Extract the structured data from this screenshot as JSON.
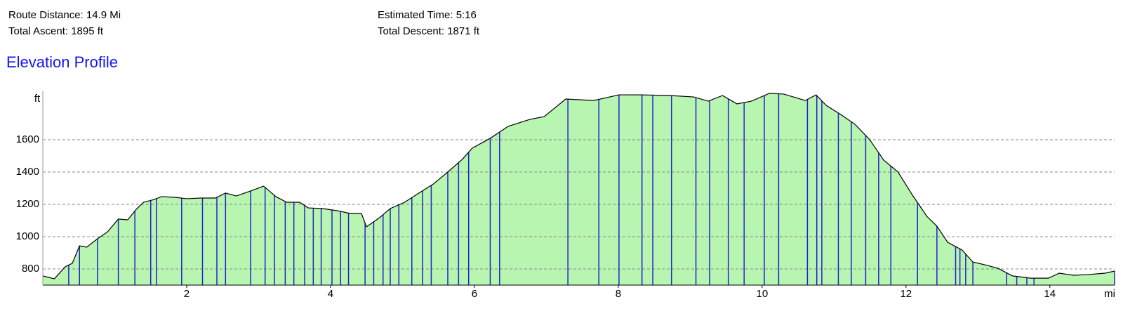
{
  "summary": {
    "route_distance": "Route Distance: 14.9 Mi",
    "total_ascent": "Total Ascent: 1895 ft",
    "estimated_time": "Estimated Time: 5:16",
    "total_descent": "Total Descent: 1871 ft"
  },
  "chart_data": {
    "type": "area",
    "title": "Elevation Profile",
    "y_label": "ft",
    "x_label": "mi",
    "x": [
      0,
      0.16,
      0.31,
      0.41,
      0.51,
      0.61,
      0.76,
      0.9,
      1.05,
      1.18,
      1.3,
      1.4,
      1.55,
      1.65,
      1.85,
      2.0,
      2.2,
      2.4,
      2.54,
      2.69,
      2.89,
      3.07,
      3.24,
      3.39,
      3.57,
      3.69,
      3.89,
      4.09,
      4.28,
      4.43,
      4.5,
      4.68,
      4.83,
      5.03,
      5.23,
      5.43,
      5.63,
      5.83,
      5.97,
      6.22,
      6.47,
      6.77,
      6.97,
      7.27,
      7.66,
      8.01,
      8.31,
      8.71,
      9.05,
      9.25,
      9.45,
      9.65,
      9.85,
      10.1,
      10.3,
      10.6,
      10.75,
      10.89,
      11.09,
      11.29,
      11.49,
      11.69,
      11.89,
      12.09,
      12.29,
      12.43,
      12.58,
      12.78,
      12.93,
      13.13,
      13.28,
      13.48,
      13.73,
      13.98,
      14.13,
      14.33,
      14.52,
      14.77,
      14.9
    ],
    "series": [
      {
        "name": "Elevation",
        "color": "#b8f5b0",
        "values": [
          757,
          739,
          813,
          835,
          943,
          935,
          987,
          1030,
          1109,
          1104,
          1170,
          1213,
          1230,
          1248,
          1243,
          1235,
          1239,
          1239,
          1270,
          1252,
          1283,
          1313,
          1248,
          1213,
          1213,
          1178,
          1174,
          1161,
          1143,
          1143,
          1061,
          1117,
          1174,
          1213,
          1270,
          1326,
          1400,
          1478,
          1548,
          1609,
          1683,
          1726,
          1743,
          1852,
          1843,
          1878,
          1878,
          1874,
          1865,
          1839,
          1874,
          1822,
          1839,
          1887,
          1883,
          1843,
          1878,
          1813,
          1757,
          1696,
          1604,
          1474,
          1400,
          1257,
          1126,
          1065,
          965,
          917,
          843,
          822,
          804,
          757,
          743,
          743,
          774,
          761,
          765,
          774,
          787
        ]
      }
    ],
    "markers": [
      0.36,
      0.51,
      0.76,
      1.05,
      1.28,
      1.5,
      1.58,
      1.93,
      2.22,
      2.42,
      2.54,
      2.89,
      3.09,
      3.22,
      3.37,
      3.49,
      3.64,
      3.76,
      3.87,
      4.02,
      4.14,
      4.25,
      4.48,
      4.6,
      4.73,
      4.83,
      4.95,
      5.13,
      5.28,
      5.4,
      5.63,
      5.78,
      5.92,
      6.22,
      6.35,
      7.3,
      7.73,
      8.01,
      8.33,
      8.48,
      8.74,
      9.08,
      9.27,
      9.53,
      9.75,
      10.03,
      10.23,
      10.63,
      10.76,
      10.83,
      11.06,
      11.24,
      11.44,
      11.62,
      11.79,
      12.16,
      12.43,
      12.69,
      12.75,
      12.83,
      12.93,
      13.4,
      13.54,
      13.68,
      13.78,
      14.9
    ],
    "marker_color": "#2222cc",
    "line_color": "#000000",
    "xlim": [
      0,
      14.9
    ],
    "xticks": [
      2,
      4,
      6,
      8,
      10,
      12,
      14
    ],
    "ylim": [
      700,
      1900
    ],
    "yticks": [
      800,
      1000,
      1200,
      1400,
      1600
    ],
    "grid": true
  }
}
